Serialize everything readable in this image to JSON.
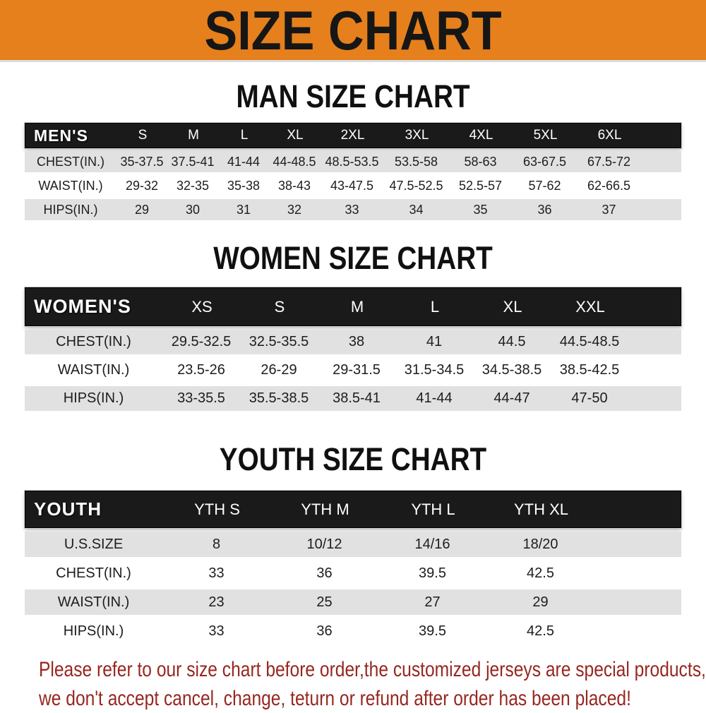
{
  "banner": {
    "title": "SIZE CHART"
  },
  "colors": {
    "banner_bg": "#e6801c",
    "header_bar_bg": "#1a1a1a",
    "row_stripe_gray": "#e1e1e1",
    "note_red": "#962720"
  },
  "sections": [
    {
      "id": "men",
      "heading": "MAN SIZE CHART",
      "table": {
        "label": "MEN'S",
        "columns": [
          "S",
          "M",
          "L",
          "XL",
          "2XL",
          "3XL",
          "4XL",
          "5XL",
          "6XL"
        ],
        "rows": [
          {
            "label": "CHEST(IN.)",
            "values": [
              "35-37.5",
              "37.5-41",
              "41-44",
              "44-48.5",
              "48.5-53.5",
              "53.5-58",
              "58-63",
              "63-67.5",
              "67.5-72"
            ]
          },
          {
            "label": "WAIST(IN.)",
            "values": [
              "29-32",
              "32-35",
              "35-38",
              "38-43",
              "43-47.5",
              "47.5-52.5",
              "52.5-57",
              "57-62",
              "62-66.5"
            ]
          },
          {
            "label": "HIPS(IN.)",
            "values": [
              "29",
              "30",
              "31",
              "32",
              "33",
              "34",
              "35",
              "36",
              "37"
            ]
          }
        ]
      }
    },
    {
      "id": "women",
      "heading": "WOMEN SIZE CHART",
      "table": {
        "label": "WOMEN'S",
        "columns": [
          "XS",
          "S",
          "M",
          "L",
          "XL",
          "XXL"
        ],
        "rows": [
          {
            "label": "CHEST(IN.)",
            "values": [
              "29.5-32.5",
              "32.5-35.5",
              "38",
              "41",
              "44.5",
              "44.5-48.5"
            ]
          },
          {
            "label": "WAIST(IN.)",
            "values": [
              "23.5-26",
              "26-29",
              "29-31.5",
              "31.5-34.5",
              "34.5-38.5",
              "38.5-42.5"
            ]
          },
          {
            "label": "HIPS(IN.)",
            "values": [
              "33-35.5",
              "35.5-38.5",
              "38.5-41",
              "41-44",
              "44-47",
              "47-50"
            ]
          }
        ]
      }
    },
    {
      "id": "youth",
      "heading": "YOUTH SIZE CHART",
      "table": {
        "label": "YOUTH",
        "columns": [
          "YTH S",
          "YTH M",
          "YTH L",
          "YTH XL"
        ],
        "rows": [
          {
            "label": "U.S.SIZE",
            "values": [
              "8",
              "10/12",
              "14/16",
              "18/20"
            ]
          },
          {
            "label": "CHEST(IN.)",
            "values": [
              "33",
              "36",
              "39.5",
              "42.5"
            ]
          },
          {
            "label": "WAIST(IN.)",
            "values": [
              "23",
              "25",
              "27",
              "29"
            ]
          },
          {
            "label": "HIPS(IN.)",
            "values": [
              "33",
              "36",
              "39.5",
              "42.5"
            ]
          }
        ]
      }
    }
  ],
  "note": {
    "line1": "Please refer to our size chart before order,the customized jerseys are special products,",
    "line2": "we don't accept cancel, change, teturn or refund after order has been placed!"
  }
}
